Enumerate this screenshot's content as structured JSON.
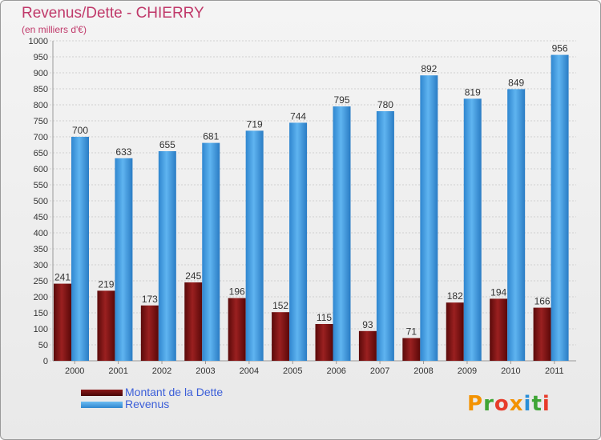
{
  "title": "Revenus/Dette - CHIERRY",
  "subtitle": "(en milliers d'€)",
  "chart_data": {
    "type": "bar",
    "categories": [
      "2000",
      "2001",
      "2002",
      "2003",
      "2004",
      "2005",
      "2006",
      "2007",
      "2008",
      "2009",
      "2010",
      "2011"
    ],
    "series": [
      {
        "name": "Montant de la Dette",
        "values": [
          241,
          219,
          173,
          245,
          196,
          152,
          115,
          93,
          71,
          182,
          194,
          166
        ],
        "color": "#7a1010"
      },
      {
        "name": "Revenus",
        "values": [
          700,
          633,
          655,
          681,
          719,
          744,
          795,
          780,
          892,
          819,
          849,
          956
        ],
        "color": "#3a99e0"
      }
    ],
    "ylim": [
      0,
      1000
    ],
    "ytick_step": 50,
    "grid": true,
    "legend_position": "bottom-left"
  },
  "legend": {
    "items": [
      {
        "label": "Montant de la Dette",
        "color": "#6b0c0c"
      },
      {
        "label": "Revenus",
        "color": "#3f9ee3"
      }
    ]
  },
  "logo": {
    "letters": [
      "P",
      "r",
      "o",
      "x",
      "i",
      "t",
      "i"
    ],
    "colors": [
      "#f39200",
      "#3fa535",
      "#e73c2b",
      "#f39200",
      "#2a8fd8",
      "#3fa535",
      "#e73c2b"
    ]
  }
}
